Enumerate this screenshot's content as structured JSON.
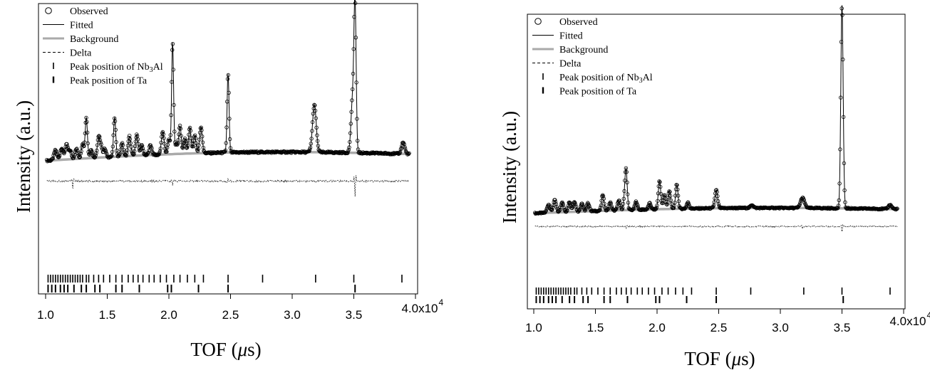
{
  "chart_data": [
    {
      "type": "scatter",
      "xlabel_main": "TOF (",
      "xlabel_mu": "μ",
      "xlabel_s": "s)",
      "ylabel": "Intensity (a.u.)",
      "xlim": [
        10000,
        40000
      ],
      "x_ticks": [
        10000,
        15000,
        20000,
        25000,
        30000,
        35000,
        40000
      ],
      "x_tick_labels": [
        "1.0",
        "1.5",
        "2.0",
        "2.5",
        "3.0",
        "3.5",
        "4.0x10"
      ],
      "x_tick_exponent": "4",
      "ylim": [
        -0.6,
        1.0
      ],
      "legend": {
        "placement": "top-left",
        "entries": [
          {
            "label": "Observed",
            "style": "circle"
          },
          {
            "label": "Fitted",
            "style": "solid"
          },
          {
            "label": "Background",
            "style": "gray-thick"
          },
          {
            "label": "Delta",
            "style": "dashed"
          },
          {
            "label": "Peak position of Nb",
            "sub": "3",
            "suffix": "Al",
            "style": "tick"
          },
          {
            "label": "Peak position of Ta",
            "style": "tick-bold"
          }
        ]
      },
      "background": {
        "start": 0.04,
        "end": 0.08,
        "curvature": 0.03
      },
      "noise": {
        "base": 0.01,
        "amplitude": 0.012
      },
      "peaks": [
        [
          10800,
          0.06,
          120
        ],
        [
          11300,
          0.07,
          120
        ],
        [
          11700,
          0.09,
          120
        ],
        [
          12000,
          0.05,
          100
        ],
        [
          12500,
          0.06,
          120
        ],
        [
          13000,
          0.09,
          100
        ],
        [
          13300,
          0.25,
          90
        ],
        [
          13700,
          0.05,
          100
        ],
        [
          14300,
          0.12,
          110
        ],
        [
          14500,
          0.06,
          100
        ],
        [
          14800,
          0.05,
          100
        ],
        [
          15600,
          0.24,
          90
        ],
        [
          16200,
          0.08,
          100
        ],
        [
          16800,
          0.12,
          110
        ],
        [
          17400,
          0.13,
          110
        ],
        [
          17800,
          0.06,
          100
        ],
        [
          18500,
          0.06,
          110
        ],
        [
          19500,
          0.14,
          110
        ],
        [
          20000,
          0.09,
          100
        ],
        [
          20300,
          0.68,
          80
        ],
        [
          20600,
          0.06,
          100
        ],
        [
          20900,
          0.17,
          100
        ],
        [
          21300,
          0.09,
          100
        ],
        [
          21700,
          0.16,
          100
        ],
        [
          22100,
          0.11,
          100
        ],
        [
          22600,
          0.16,
          110
        ],
        [
          24800,
          0.48,
          80
        ],
        [
          31800,
          0.29,
          150
        ],
        [
          34900,
          0.32,
          130
        ],
        [
          35100,
          0.86,
          90
        ],
        [
          39000,
          0.07,
          130
        ]
      ],
      "delta_spikes": [
        [
          12200,
          -0.05
        ],
        [
          20300,
          -0.03
        ],
        [
          24800,
          0.02
        ],
        [
          35100,
          -0.09
        ]
      ],
      "delta_level": -0.085,
      "nb3al_positions": [
        10200,
        10400,
        10600,
        10800,
        11000,
        11200,
        11400,
        11600,
        11800,
        12000,
        12200,
        12400,
        12600,
        12800,
        13000,
        13300,
        13500,
        13900,
        14300,
        14700,
        15200,
        15700,
        16200,
        16700,
        17100,
        17500,
        17900,
        18400,
        18800,
        19300,
        19800,
        20400,
        20900,
        21500,
        22100,
        22800,
        24800,
        27600,
        31900,
        35000,
        38900
      ],
      "ta_positions": [
        10200,
        10500,
        10800,
        11200,
        11500,
        11800,
        12300,
        12900,
        13300,
        14000,
        14400,
        15700,
        16200,
        17600,
        19900,
        20200,
        22400,
        24800,
        35100
      ]
    },
    {
      "type": "scatter",
      "xlabel_main": "TOF (",
      "xlabel_mu": "μ",
      "xlabel_s": "s)",
      "ylabel": "Intensity (a.u.)",
      "xlim": [
        10000,
        40000
      ],
      "x_ticks": [
        10000,
        15000,
        20000,
        25000,
        30000,
        35000,
        40000
      ],
      "x_tick_labels": [
        "1.0",
        "1.5",
        "2.0",
        "2.5",
        "3.0",
        "3.5",
        "4.0x10"
      ],
      "x_tick_exponent": "4",
      "ylim": [
        -0.3,
        1.0
      ],
      "legend": {
        "placement": "top-left",
        "entries": [
          {
            "label": "Observed",
            "style": "circle"
          },
          {
            "label": "Fitted",
            "style": "solid"
          },
          {
            "label": "Background",
            "style": "gray-thick"
          },
          {
            "label": "Delta",
            "style": "dashed"
          },
          {
            "label": "Peak position of Nb",
            "sub": "3",
            "suffix": "Al",
            "style": "tick"
          },
          {
            "label": "Peak position of Ta",
            "style": "tick-bold"
          }
        ]
      },
      "background": {
        "start": 0.02,
        "end": 0.04,
        "curvature": 0.015
      },
      "noise": {
        "base": 0.006,
        "amplitude": 0.007
      },
      "peaks": [
        [
          11200,
          0.04,
          120
        ],
        [
          11700,
          0.06,
          120
        ],
        [
          12300,
          0.05,
          110
        ],
        [
          12900,
          0.05,
          110
        ],
        [
          13300,
          0.05,
          110
        ],
        [
          13900,
          0.04,
          110
        ],
        [
          14400,
          0.04,
          110
        ],
        [
          15600,
          0.08,
          100
        ],
        [
          16200,
          0.04,
          100
        ],
        [
          16900,
          0.05,
          100
        ],
        [
          17400,
          0.07,
          100
        ],
        [
          17500,
          0.16,
          90
        ],
        [
          18300,
          0.04,
          100
        ],
        [
          19400,
          0.03,
          100
        ],
        [
          20200,
          0.14,
          100
        ],
        [
          20600,
          0.07,
          100
        ],
        [
          21000,
          0.09,
          100
        ],
        [
          21600,
          0.12,
          100
        ],
        [
          22500,
          0.03,
          100
        ],
        [
          24800,
          0.09,
          110
        ],
        [
          27700,
          0.015,
          120
        ],
        [
          31800,
          0.05,
          160
        ],
        [
          35000,
          1.0,
          95
        ],
        [
          38900,
          0.02,
          140
        ]
      ],
      "delta_spikes": [
        [
          17500,
          -0.01
        ],
        [
          31800,
          -0.01
        ],
        [
          35000,
          -0.03
        ]
      ],
      "delta_level": -0.045,
      "nb3al_positions": [
        10200,
        10400,
        10600,
        10800,
        11000,
        11200,
        11400,
        11600,
        11800,
        12000,
        12200,
        12400,
        12600,
        12800,
        13000,
        13300,
        13500,
        13900,
        14300,
        14700,
        15200,
        15700,
        16200,
        16700,
        17100,
        17500,
        17900,
        18400,
        18800,
        19300,
        19800,
        20400,
        20900,
        21500,
        22100,
        22800,
        24800,
        27600,
        31900,
        35000,
        38900
      ],
      "ta_positions": [
        10200,
        10500,
        10800,
        11200,
        11500,
        11800,
        12300,
        12900,
        13300,
        14000,
        14400,
        15700,
        16200,
        17600,
        19900,
        20200,
        22400,
        24800,
        35100
      ]
    }
  ]
}
